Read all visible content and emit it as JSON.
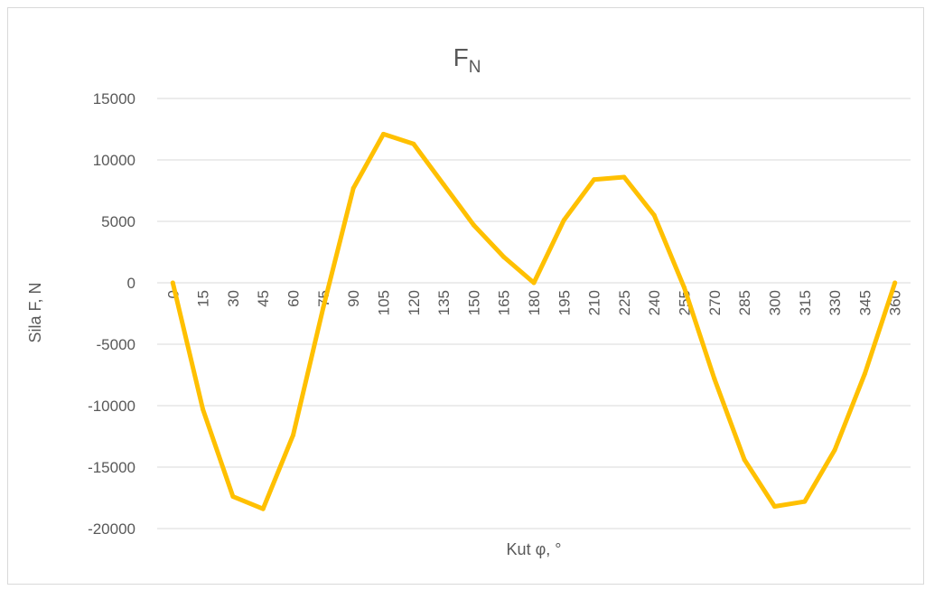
{
  "chart_data": {
    "type": "line",
    "title": "F",
    "title_subscript": "N",
    "xlabel": "Kut φ, °",
    "ylabel": "Sila F, N",
    "ylim": [
      -20000,
      15000
    ],
    "y_ticks": [
      15000,
      10000,
      5000,
      0,
      -5000,
      -10000,
      -15000,
      -20000
    ],
    "grid": true,
    "categories": [
      "0",
      "15",
      "30",
      "45",
      "60",
      "75",
      "90",
      "105",
      "120",
      "135",
      "150",
      "165",
      "180",
      "195",
      "210",
      "225",
      "240",
      "255",
      "270",
      "285",
      "300",
      "315",
      "330",
      "345",
      "360"
    ],
    "series": [
      {
        "color": "#FFC000",
        "values": [
          0,
          -10300,
          -17400,
          -18400,
          -12400,
          -2000,
          7700,
          12100,
          11300,
          8000,
          4700,
          2100,
          0,
          5100,
          8400,
          8600,
          5500,
          -400,
          -7800,
          -14400,
          -18200,
          -17800,
          -13600,
          -7400,
          0
        ]
      }
    ]
  }
}
